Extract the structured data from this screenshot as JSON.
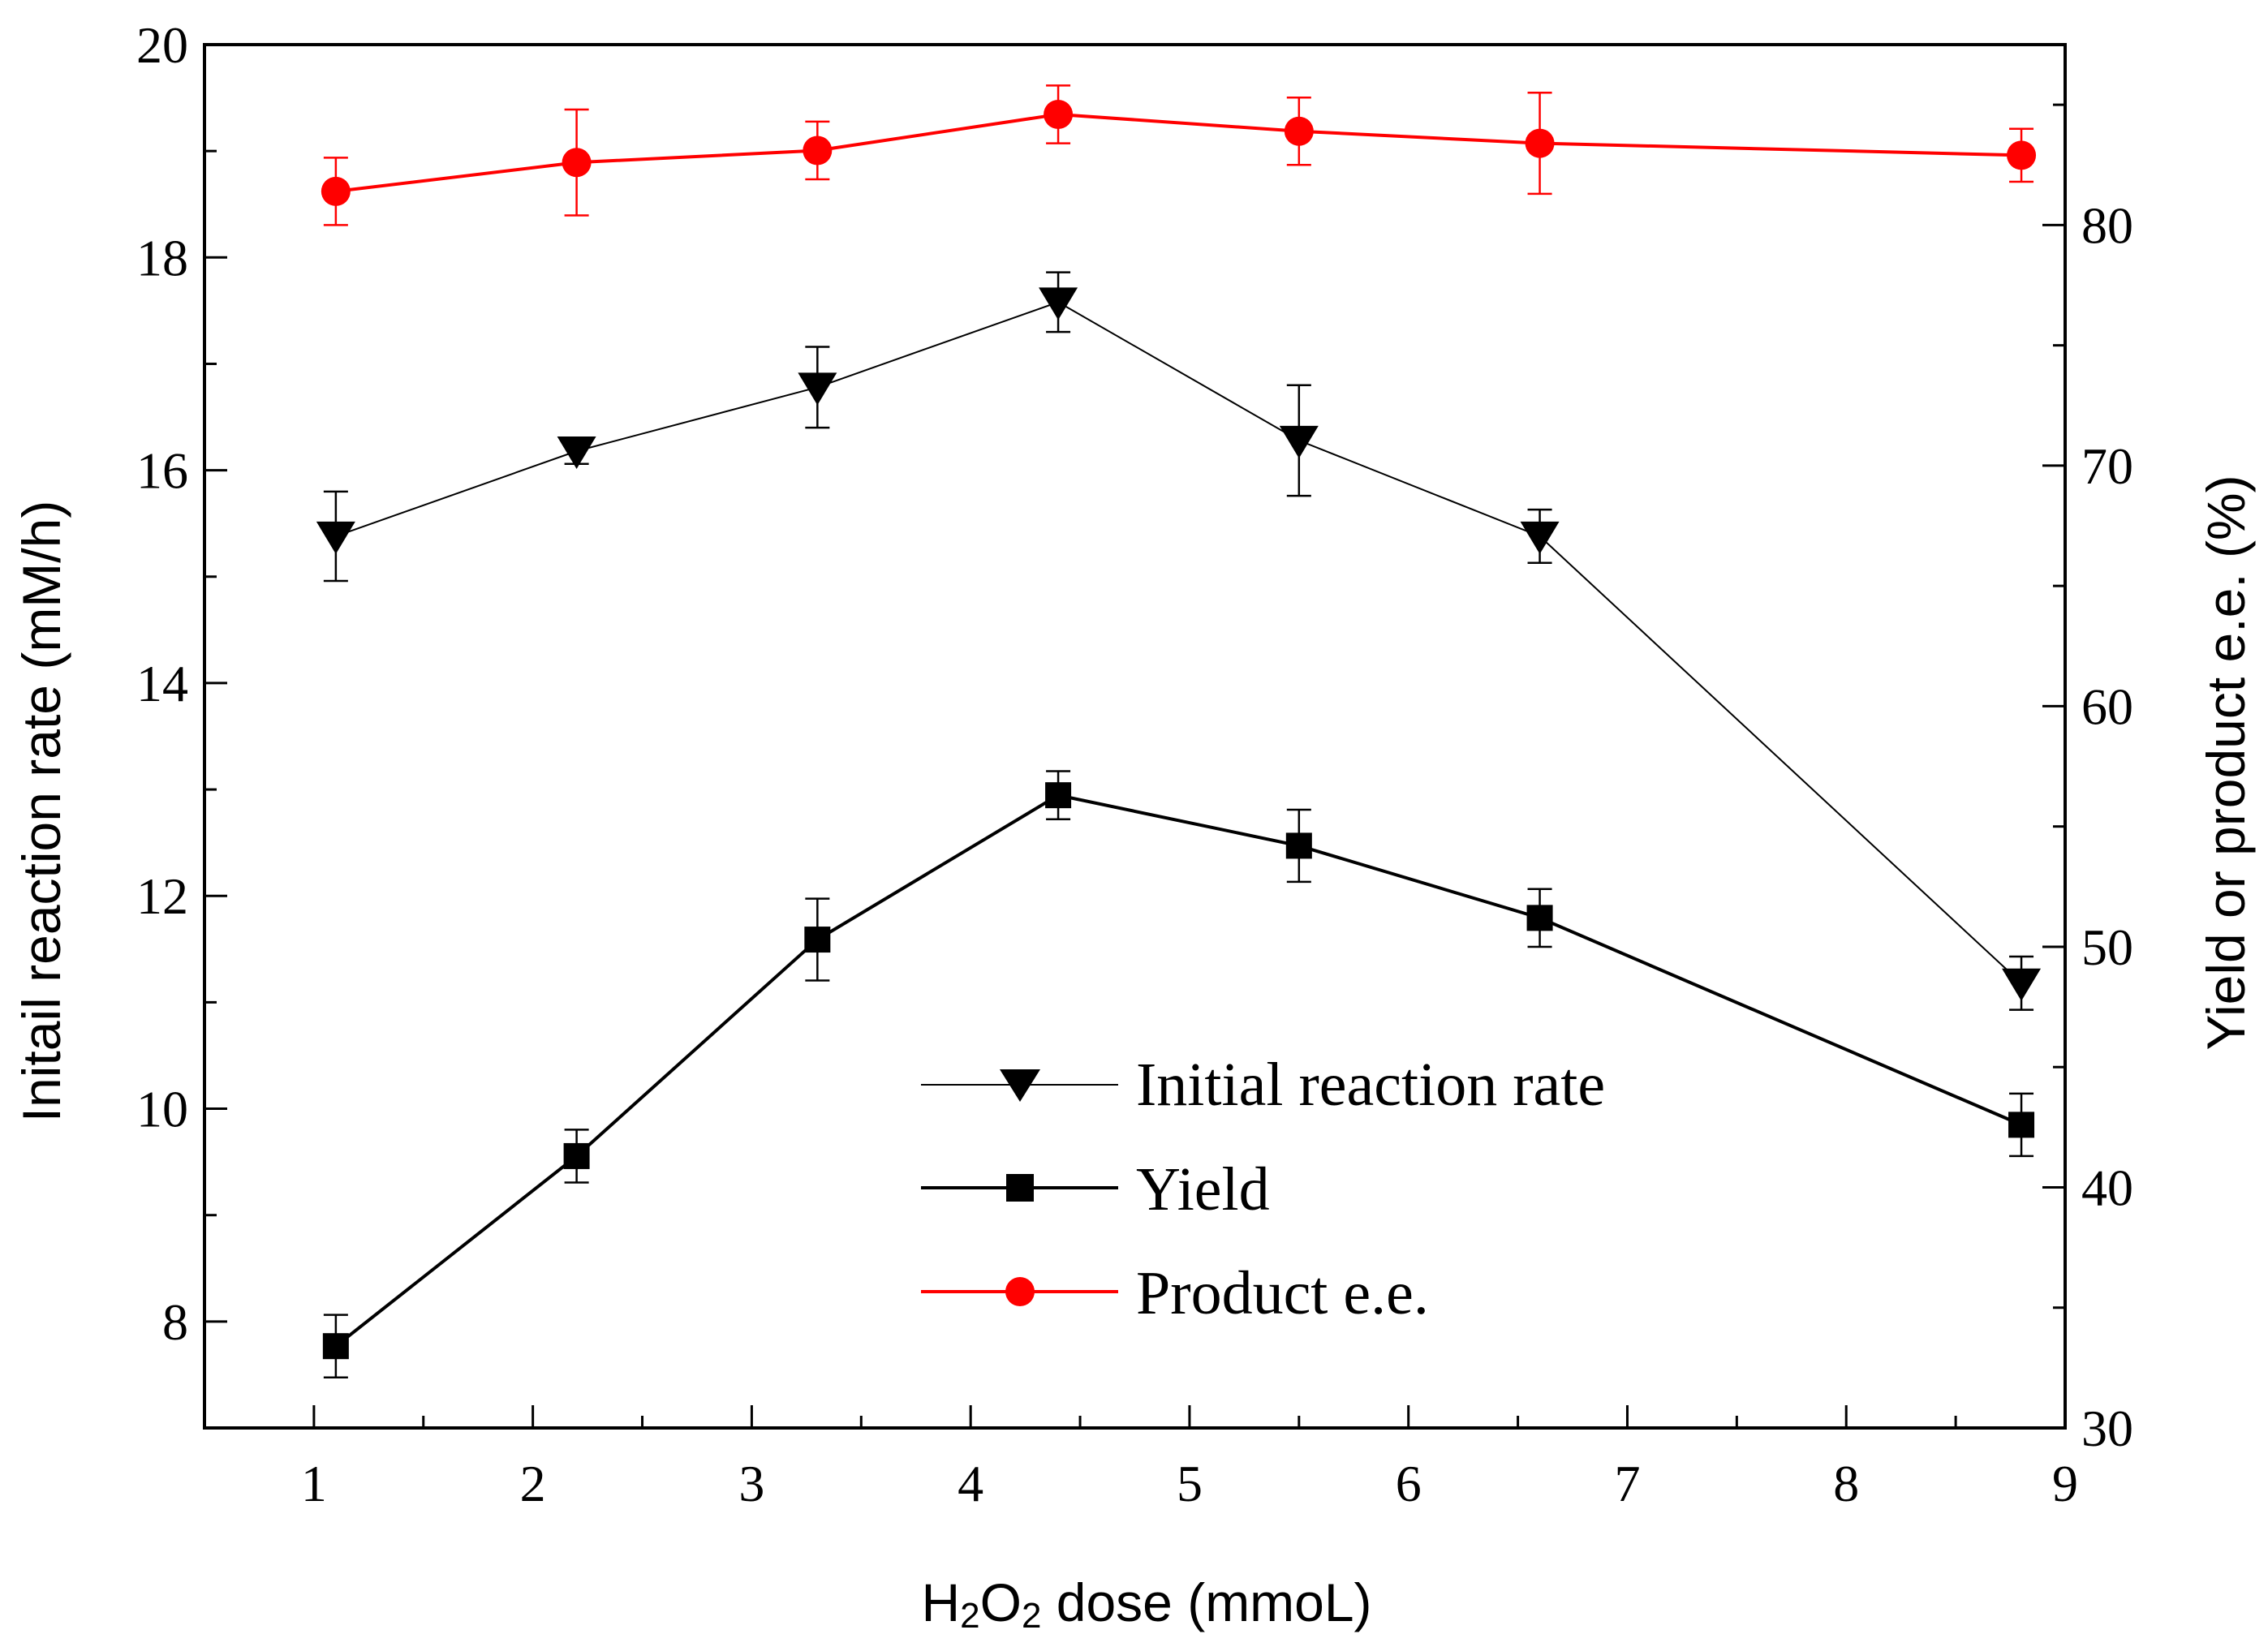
{
  "chart_data": {
    "type": "line",
    "title": "",
    "xlabel": {
      "main": "H",
      "sub1": "2",
      "mid": "O",
      "sub2": "2",
      "rest": " dose (mmoL)"
    },
    "ylabel_left": "Initail reaction rate (mM/h)",
    "ylabel_right": "Yield or product e.e. (%)",
    "xlim": [
      0.5,
      9
    ],
    "ylim_left": [
      7,
      20
    ],
    "ylim_right": [
      30,
      87.5
    ],
    "xticks": [
      1,
      2,
      3,
      4,
      5,
      6,
      7,
      8,
      9
    ],
    "xtick_labels": [
      "1",
      "2",
      "3",
      "4",
      "5",
      "6",
      "7",
      "8",
      "9"
    ],
    "yticks_left": [
      8,
      10,
      12,
      14,
      16,
      18,
      20
    ],
    "ytick_labels_left": [
      "8",
      "10",
      "12",
      "14",
      "16",
      "18",
      "20"
    ],
    "yticks_right": [
      30,
      40,
      50,
      60,
      70,
      80
    ],
    "ytick_labels_right": [
      "30",
      "40",
      "50",
      "60",
      "70",
      "80"
    ],
    "x": [
      1.1,
      2.2,
      3.3,
      4.4,
      5.5,
      6.6,
      8.8
    ],
    "series": [
      {
        "name": "Initial reaction rate",
        "axis": "left",
        "marker": "triangle-down",
        "color": "#000000",
        "values": [
          15.38,
          16.18,
          16.78,
          17.58,
          16.28,
          15.38,
          11.18
        ],
        "errors": [
          0.42,
          0.12,
          0.38,
          0.28,
          0.52,
          0.25,
          0.25
        ]
      },
      {
        "name": "Yield",
        "axis": "right",
        "marker": "square",
        "color": "#000000",
        "values": [
          33.4,
          41.3,
          50.3,
          56.3,
          54.2,
          51.2,
          42.6
        ],
        "errors": [
          1.3,
          1.1,
          1.7,
          1.0,
          1.5,
          1.2,
          1.3
        ]
      },
      {
        "name": "Product e.e.",
        "axis": "right",
        "marker": "circle",
        "color": "#ff0000",
        "values": [
          81.4,
          82.6,
          83.1,
          84.6,
          83.9,
          83.4,
          82.9
        ],
        "errors": [
          1.4,
          2.2,
          1.2,
          1.2,
          1.4,
          2.1,
          1.1
        ]
      }
    ],
    "legend": {
      "position": "center-right",
      "entries": [
        "Initial reaction rate",
        "Yield",
        "Product e.e."
      ]
    }
  }
}
